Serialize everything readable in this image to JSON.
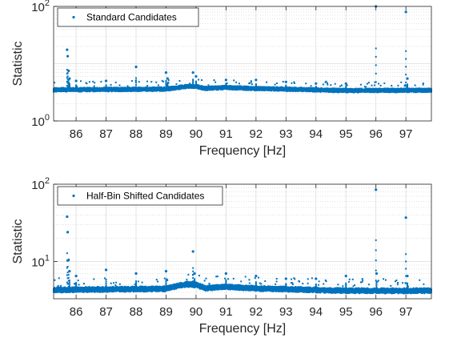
{
  "chart_data": [
    {
      "type": "scatter",
      "xlabel": "Frequency [Hz]",
      "ylabel": "Statistic",
      "xlim": [
        85.25,
        97.85
      ],
      "ylim": [
        1,
        100
      ],
      "yscale": "log",
      "grid": true,
      "minor_grid": true,
      "legend_position": "top-left",
      "x_ticks": [
        "86",
        "87",
        "88",
        "89",
        "90",
        "91",
        "92",
        "93",
        "94",
        "95",
        "96",
        "97"
      ],
      "y_tick_labels": [
        {
          "value": 1,
          "base": "10",
          "exp": "0"
        },
        {
          "value": 100,
          "base": "10",
          "exp": "2"
        }
      ],
      "series": [
        {
          "name": "Standard Candidates",
          "color": "#0072bd",
          "baseline": [
            [
              85.25,
              3.5
            ],
            [
              89.0,
              3.6
            ],
            [
              89.4,
              3.85
            ],
            [
              89.7,
              4.0
            ],
            [
              90.0,
              4.0
            ],
            [
              90.3,
              3.7
            ],
            [
              91.0,
              3.85
            ],
            [
              92.0,
              3.7
            ],
            [
              93.0,
              3.6
            ],
            [
              95.0,
              3.4
            ],
            [
              97.85,
              3.45
            ]
          ],
          "spikes": [
            {
              "x": 85.7,
              "y": 17.5
            },
            {
              "x": 85.72,
              "y": 13.5
            },
            {
              "x": 85.75,
              "y": 7.5
            },
            {
              "x": 85.78,
              "y": 5.5
            },
            {
              "x": 86.0,
              "y": 5.0
            },
            {
              "x": 87.0,
              "y": 5.0
            },
            {
              "x": 88.0,
              "y": 8.8
            },
            {
              "x": 89.0,
              "y": 7.0
            },
            {
              "x": 89.05,
              "y": 5.5
            },
            {
              "x": 89.9,
              "y": 7.0
            },
            {
              "x": 90.0,
              "y": 6.0
            },
            {
              "x": 91.0,
              "y": 5.2
            },
            {
              "x": 92.0,
              "y": 5.2
            },
            {
              "x": 93.0,
              "y": 4.8
            },
            {
              "x": 94.0,
              "y": 4.5
            },
            {
              "x": 95.0,
              "y": 4.5
            },
            {
              "x": 96.0,
              "y": 100
            },
            {
              "x": 97.0,
              "y": 80
            },
            {
              "x": 97.05,
              "y": 5.5
            }
          ]
        }
      ]
    },
    {
      "type": "scatter",
      "xlabel": "Frequency [Hz]",
      "ylabel": "Statistic",
      "xlim": [
        85.25,
        97.85
      ],
      "ylim": [
        3.3,
        100
      ],
      "yscale": "log",
      "grid": true,
      "minor_grid": true,
      "legend_position": "top-left",
      "x_ticks": [
        "86",
        "87",
        "88",
        "89",
        "90",
        "91",
        "92",
        "93",
        "94",
        "95",
        "96",
        "97"
      ],
      "y_tick_labels": [
        {
          "value": 10,
          "base": "10",
          "exp": "1"
        },
        {
          "value": 100,
          "base": "10",
          "exp": "2"
        }
      ],
      "series": [
        {
          "name": "Half-Bin Shifted Candidates",
          "color": "#0072bd",
          "baseline": [
            [
              85.25,
              4.3
            ],
            [
              89.0,
              4.45
            ],
            [
              89.4,
              4.85
            ],
            [
              89.7,
              5.1
            ],
            [
              90.0,
              5.0
            ],
            [
              90.3,
              4.55
            ],
            [
              91.0,
              4.7
            ],
            [
              92.0,
              4.5
            ],
            [
              93.0,
              4.4
            ],
            [
              95.0,
              4.2
            ],
            [
              97.85,
              4.2
            ]
          ],
          "spikes": [
            {
              "x": 85.7,
              "y": 38
            },
            {
              "x": 85.72,
              "y": 24
            },
            {
              "x": 85.75,
              "y": 10.5
            },
            {
              "x": 85.78,
              "y": 7.5
            },
            {
              "x": 86.0,
              "y": 6.5
            },
            {
              "x": 87.0,
              "y": 7.8
            },
            {
              "x": 88.0,
              "y": 7.0
            },
            {
              "x": 89.0,
              "y": 7.5
            },
            {
              "x": 89.9,
              "y": 13.5
            },
            {
              "x": 89.95,
              "y": 7.0
            },
            {
              "x": 91.0,
              "y": 7.0
            },
            {
              "x": 92.0,
              "y": 6.5
            },
            {
              "x": 93.0,
              "y": 6.0
            },
            {
              "x": 94.0,
              "y": 6.0
            },
            {
              "x": 95.0,
              "y": 6.5
            },
            {
              "x": 96.0,
              "y": 85
            },
            {
              "x": 96.02,
              "y": 7.0
            },
            {
              "x": 97.0,
              "y": 37
            },
            {
              "x": 97.05,
              "y": 6.5
            }
          ]
        }
      ]
    }
  ]
}
